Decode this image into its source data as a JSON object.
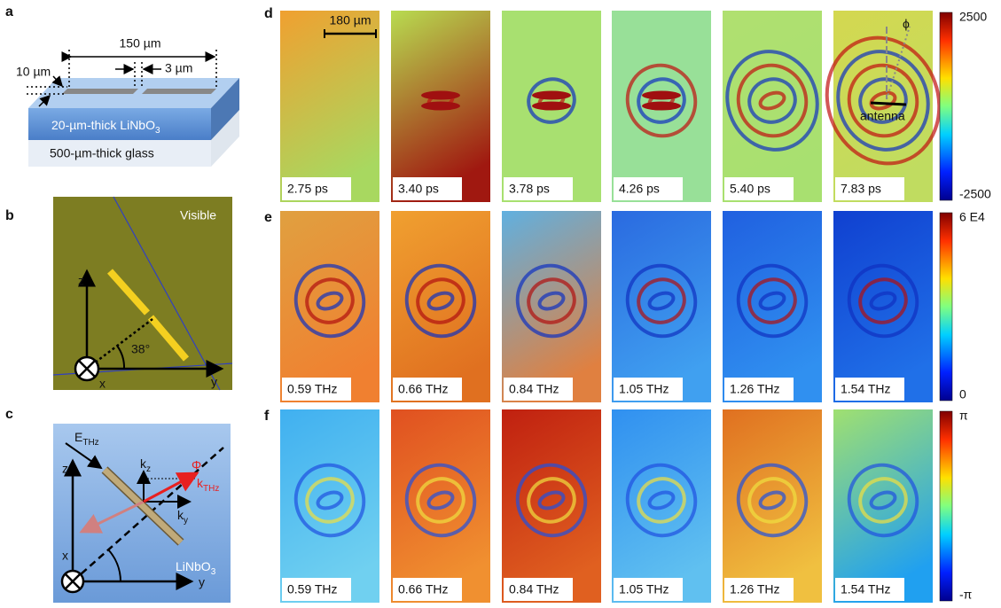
{
  "panels": {
    "a": {
      "label": "a",
      "width": "150 µm",
      "gap": "3 µm",
      "thickness": "10 µm",
      "layers": [
        {
          "text": "20-µm-thick LiNbO",
          "sub": "3"
        },
        {
          "text": "500-µm-thick glass"
        }
      ]
    },
    "b": {
      "label": "b",
      "caption": "Visible",
      "z": "z",
      "x": "x",
      "y": "y",
      "angle": "38°"
    },
    "c": {
      "label": "c",
      "field": {
        "text": "E",
        "sub": "THz"
      },
      "kz": {
        "text": "k",
        "sub": "z"
      },
      "ky": {
        "text": "k",
        "sub": "y"
      },
      "kthz": {
        "text": "k",
        "sub": "THz"
      },
      "phi": "Φ",
      "z": "z",
      "x": "x",
      "y": "y",
      "material": {
        "text": "LiNbO",
        "sub": "3"
      }
    },
    "d": {
      "label": "d",
      "scale_bar": "180 µm",
      "angle": "ϕ",
      "antenna": "antenna",
      "frames": [
        "2.75 ps",
        "3.40 ps",
        "3.78 ps",
        "4.26 ps",
        "5.40 ps",
        "7.83 ps"
      ],
      "colorbar": {
        "max": "2500",
        "min": "-2500"
      }
    },
    "e": {
      "label": "e",
      "frames": [
        "0.59 THz",
        "0.66 THz",
        "0.84 THz",
        "1.05 THz",
        "1.26 THz",
        "1.54 THz"
      ],
      "colorbar": {
        "max": "6 E4",
        "min": "0"
      }
    },
    "f": {
      "label": "f",
      "frames": [
        "0.59 THz",
        "0.66 THz",
        "0.84 THz",
        "1.05 THz",
        "1.26 THz",
        "1.54 THz"
      ],
      "colorbar": {
        "max": "π",
        "min": "-π"
      }
    }
  }
}
